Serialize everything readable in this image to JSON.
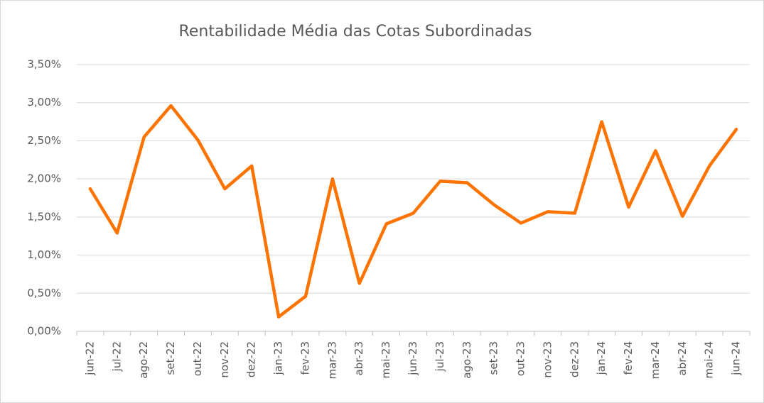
{
  "chart_data": {
    "type": "line",
    "title": "Rentabilidade Média das Cotas Subordinadas",
    "categories": [
      "jun-22",
      "jul-22",
      "ago-22",
      "set-22",
      "out-22",
      "nov-22",
      "dez-22",
      "jan-23",
      "fev-23",
      "mar-23",
      "abr-23",
      "mai-23",
      "jun-23",
      "jul-23",
      "ago-23",
      "set-23",
      "out-23",
      "nov-23",
      "dez-23",
      "jan-24",
      "fev-24",
      "mar-24",
      "abr-24",
      "mai-24",
      "jun-24"
    ],
    "series": [
      {
        "name": "Rentabilidade",
        "color": "#ff7300",
        "values": [
          1.87,
          1.29,
          2.55,
          2.96,
          2.51,
          1.87,
          2.17,
          0.19,
          0.46,
          2.0,
          0.63,
          1.41,
          1.55,
          1.97,
          1.95,
          1.66,
          1.42,
          1.57,
          1.55,
          2.75,
          1.63,
          2.37,
          1.51,
          2.17,
          2.65
        ]
      }
    ],
    "ylim": [
      0,
      3.5
    ],
    "yticks": [
      {
        "value": 0,
        "label": "0,00%"
      },
      {
        "value": 0.5,
        "label": "0,50%"
      },
      {
        "value": 1,
        "label": "1,00%"
      },
      {
        "value": 1.5,
        "label": "1,50%"
      },
      {
        "value": 2,
        "label": "2,00%"
      },
      {
        "value": 2.5,
        "label": "2,50%"
      },
      {
        "value": 3,
        "label": "3,00%"
      },
      {
        "value": 3.5,
        "label": "3,50%"
      }
    ],
    "grid": true
  }
}
